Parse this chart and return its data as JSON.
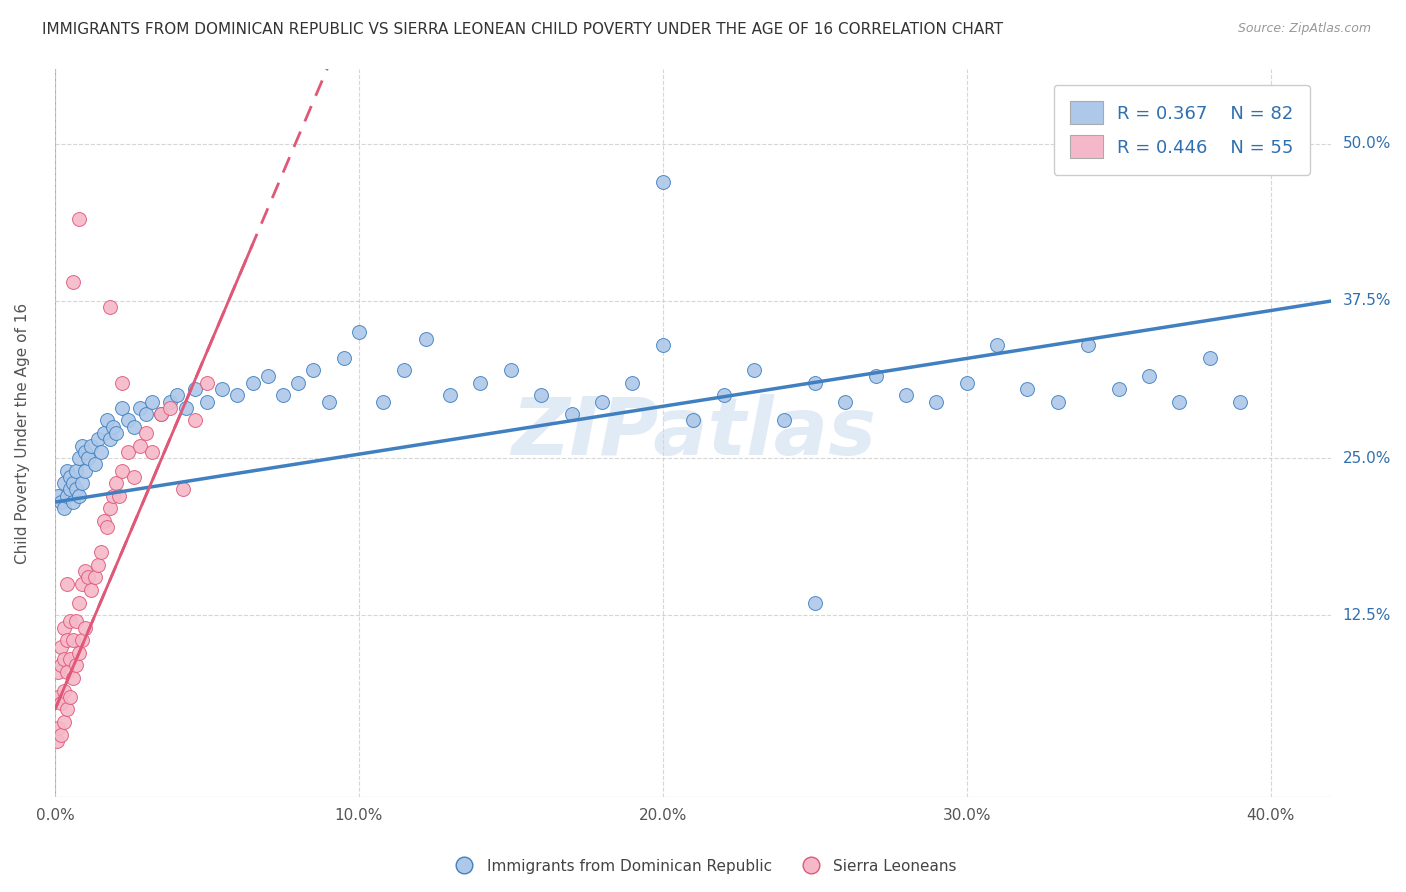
{
  "title": "IMMIGRANTS FROM DOMINICAN REPUBLIC VS SIERRA LEONEAN CHILD POVERTY UNDER THE AGE OF 16 CORRELATION CHART",
  "source": "Source: ZipAtlas.com",
  "ylabel": "Child Poverty Under the Age of 16",
  "xticklabels": [
    "0.0%",
    "10.0%",
    "20.0%",
    "30.0%",
    "40.0%"
  ],
  "xtick_values": [
    0.0,
    0.1,
    0.2,
    0.3,
    0.4
  ],
  "yticklabels": [
    "12.5%",
    "25.0%",
    "37.5%",
    "50.0%"
  ],
  "ytick_values": [
    0.125,
    0.25,
    0.375,
    0.5
  ],
  "xlim": [
    0.0,
    0.42
  ],
  "ylim": [
    -0.02,
    0.56
  ],
  "blue_R": 0.367,
  "blue_N": 82,
  "pink_R": 0.446,
  "pink_N": 55,
  "blue_color": "#adc8e8",
  "pink_color": "#f5b8c8",
  "blue_line_color": "#4080c0",
  "pink_line_color": "#e05878",
  "legend_text_color": "#3070b0",
  "watermark": "ZIPatlas",
  "blue_scatter_x": [
    0.001,
    0.002,
    0.003,
    0.003,
    0.004,
    0.004,
    0.005,
    0.005,
    0.006,
    0.006,
    0.007,
    0.007,
    0.008,
    0.008,
    0.009,
    0.009,
    0.01,
    0.01,
    0.011,
    0.012,
    0.013,
    0.014,
    0.015,
    0.016,
    0.017,
    0.018,
    0.019,
    0.02,
    0.022,
    0.024,
    0.026,
    0.028,
    0.03,
    0.032,
    0.035,
    0.038,
    0.04,
    0.043,
    0.046,
    0.05,
    0.055,
    0.06,
    0.065,
    0.07,
    0.075,
    0.08,
    0.085,
    0.09,
    0.095,
    0.1,
    0.108,
    0.115,
    0.122,
    0.13,
    0.14,
    0.15,
    0.16,
    0.17,
    0.18,
    0.19,
    0.2,
    0.21,
    0.22,
    0.23,
    0.24,
    0.25,
    0.26,
    0.27,
    0.28,
    0.29,
    0.3,
    0.31,
    0.32,
    0.33,
    0.34,
    0.35,
    0.36,
    0.37,
    0.38,
    0.39,
    0.2,
    0.25
  ],
  "blue_scatter_y": [
    0.22,
    0.215,
    0.23,
    0.21,
    0.24,
    0.22,
    0.225,
    0.235,
    0.215,
    0.23,
    0.225,
    0.24,
    0.22,
    0.25,
    0.23,
    0.26,
    0.24,
    0.255,
    0.25,
    0.26,
    0.245,
    0.265,
    0.255,
    0.27,
    0.28,
    0.265,
    0.275,
    0.27,
    0.29,
    0.28,
    0.275,
    0.29,
    0.285,
    0.295,
    0.285,
    0.295,
    0.3,
    0.29,
    0.305,
    0.295,
    0.305,
    0.3,
    0.31,
    0.315,
    0.3,
    0.31,
    0.32,
    0.295,
    0.33,
    0.35,
    0.295,
    0.32,
    0.345,
    0.3,
    0.31,
    0.32,
    0.3,
    0.285,
    0.295,
    0.31,
    0.34,
    0.28,
    0.3,
    0.32,
    0.28,
    0.31,
    0.295,
    0.315,
    0.3,
    0.295,
    0.31,
    0.34,
    0.305,
    0.295,
    0.34,
    0.305,
    0.315,
    0.295,
    0.33,
    0.295,
    0.47,
    0.135
  ],
  "pink_scatter_x": [
    0.0005,
    0.001,
    0.001,
    0.001,
    0.002,
    0.002,
    0.002,
    0.002,
    0.003,
    0.003,
    0.003,
    0.003,
    0.004,
    0.004,
    0.004,
    0.005,
    0.005,
    0.005,
    0.006,
    0.006,
    0.007,
    0.007,
    0.008,
    0.008,
    0.009,
    0.009,
    0.01,
    0.01,
    0.011,
    0.012,
    0.013,
    0.014,
    0.015,
    0.016,
    0.017,
    0.018,
    0.019,
    0.02,
    0.021,
    0.022,
    0.024,
    0.026,
    0.028,
    0.03,
    0.032,
    0.035,
    0.038,
    0.042,
    0.046,
    0.05,
    0.022,
    0.018,
    0.006,
    0.008,
    0.004
  ],
  "pink_scatter_y": [
    0.025,
    0.035,
    0.06,
    0.08,
    0.03,
    0.055,
    0.085,
    0.1,
    0.04,
    0.065,
    0.09,
    0.115,
    0.05,
    0.08,
    0.105,
    0.06,
    0.09,
    0.12,
    0.075,
    0.105,
    0.085,
    0.12,
    0.095,
    0.135,
    0.105,
    0.15,
    0.115,
    0.16,
    0.155,
    0.145,
    0.155,
    0.165,
    0.175,
    0.2,
    0.195,
    0.21,
    0.22,
    0.23,
    0.22,
    0.24,
    0.255,
    0.235,
    0.26,
    0.27,
    0.255,
    0.285,
    0.29,
    0.225,
    0.28,
    0.31,
    0.31,
    0.37,
    0.39,
    0.44,
    0.15
  ],
  "background_color": "#ffffff",
  "grid_color": "#cccccc"
}
